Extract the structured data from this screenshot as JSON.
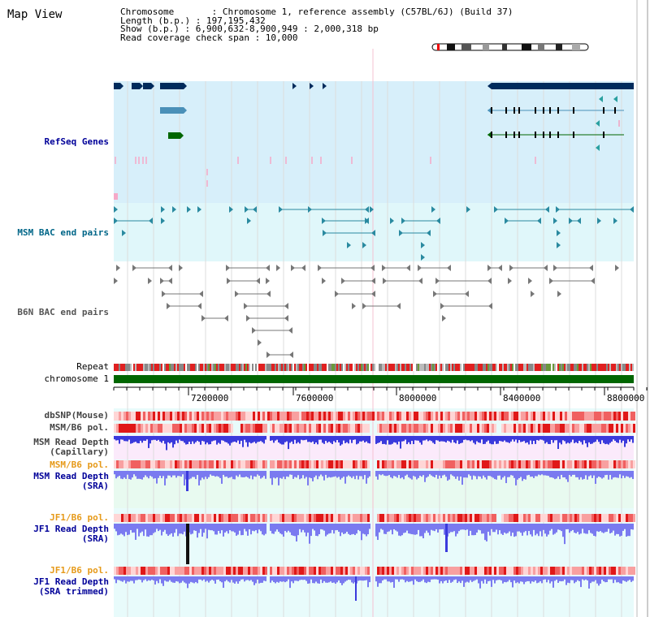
{
  "title": "Map View",
  "info": {
    "chromosome": "Chromosome       : Chromosome 1, reference assembly (C57BL/6J) (Build 37)",
    "length": "Length (b.p.) : 197,195,432",
    "show": "Show (b.p.) : 6,900,632-8,900,949 : 2,000,318 bp",
    "coverage": "Read coverage check span : 10,000"
  },
  "tracks": {
    "refseq": "RefSeq Genes",
    "msm_bac": "MSM BAC end pairs",
    "b6n_bac": "B6N BAC end pairs",
    "repeat": "Repeat",
    "chromosome": "chromosome 1",
    "dbsnp": "dbSNP(Mouse)",
    "msm_b6_pol_1": "MSM/B6 pol.",
    "msm_read_depth_cap": "MSM Read Depth\n(Capillary)",
    "msm_b6_pol_2": "MSM/B6 pol.",
    "msm_read_depth_sra": "MSM Read Depth\n(SRA)",
    "jf1_b6_pol_1": "JF1/B6 pol.",
    "jf1_read_depth_sra": "JF1 Read Depth\n(SRA)",
    "jf1_b6_pol_2": "JF1/B6 pol.",
    "jf1_read_depth_trim": "JF1 Read Depth\n(SRA trimmed)"
  },
  "axis": {
    "ticks": [
      "7200000",
      "7600000",
      "8000000",
      "8400000",
      "8800000"
    ]
  },
  "colors": {
    "refseq_bg": "#d7effa",
    "msm_bac_bg": "#e0f7fa",
    "depth_bg": "#e8faf0",
    "gene_navy": "#002b5c",
    "gene_blue": "#4a90b8",
    "gene_green": "#006600",
    "bac_teal": "#2a8aa0",
    "bac_grey": "#777777",
    "chromosome_bar": "#006600",
    "depth_blue": "#3a3adc",
    "snp_red": "#e03030"
  }
}
